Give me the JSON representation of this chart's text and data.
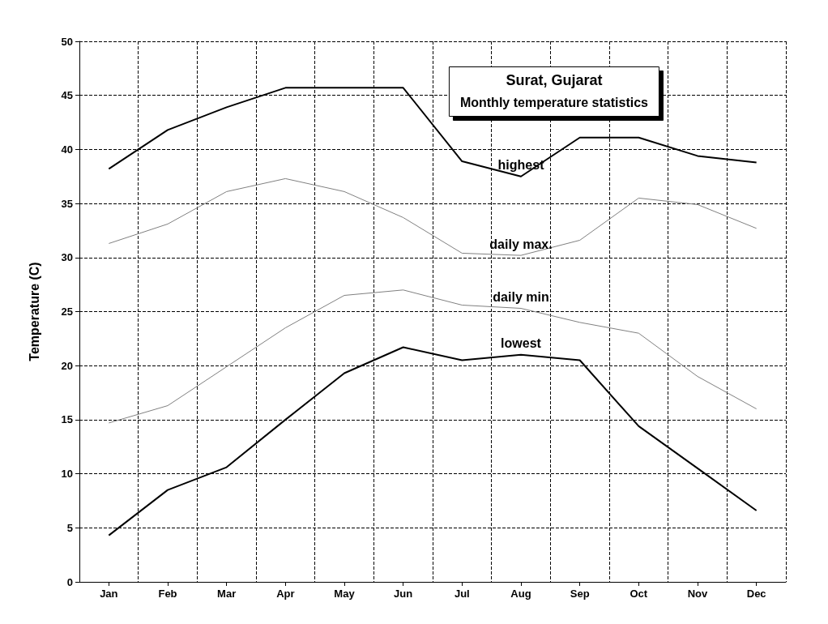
{
  "chart_data": {
    "type": "line",
    "title": "Surat, Gujarat",
    "subtitle": "Monthly temperature statistics",
    "ylabel": "Temperature (C)",
    "categories": [
      "Jan",
      "Feb",
      "Mar",
      "Apr",
      "May",
      "Jun",
      "Jul",
      "Aug",
      "Sep",
      "Oct",
      "Nov",
      "Dec"
    ],
    "series": [
      {
        "name": "highest",
        "color": "#000000",
        "values": [
          38.2,
          41.8,
          43.9,
          45.7,
          45.7,
          45.7,
          38.9,
          37.5,
          41.1,
          41.1,
          39.4,
          38.8
        ]
      },
      {
        "name": "daily max.",
        "color": "#808080",
        "values": [
          31.3,
          33.1,
          36.1,
          37.3,
          36.1,
          33.7,
          30.4,
          30.2,
          31.6,
          35.5,
          34.9,
          32.7
        ]
      },
      {
        "name": "daily min",
        "color": "#808080",
        "values": [
          14.7,
          16.3,
          19.9,
          23.5,
          26.5,
          27.0,
          25.6,
          25.3,
          24.0,
          23.0,
          19.0,
          16.0
        ]
      },
      {
        "name": "lowest",
        "color": "#000000",
        "values": [
          4.3,
          8.5,
          10.6,
          15.0,
          19.3,
          21.7,
          20.5,
          21.0,
          20.5,
          14.4,
          10.5,
          6.6
        ]
      }
    ],
    "ylim": [
      0,
      50
    ],
    "yticks": [
      0,
      5,
      10,
      15,
      20,
      25,
      30,
      35,
      40,
      45,
      50
    ],
    "grid": true,
    "legend": false,
    "marker": "none",
    "line_style": "solid"
  }
}
